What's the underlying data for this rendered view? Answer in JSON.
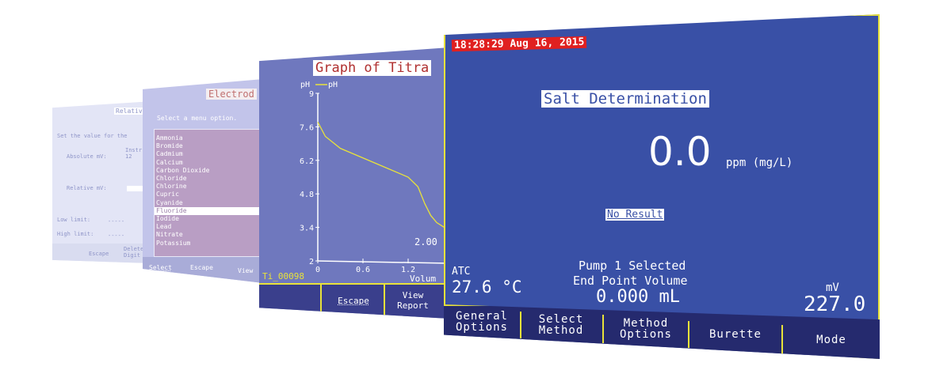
{
  "screen_settings": {
    "title": "Relative",
    "prompt": "Set the value for the",
    "absolute_label": "Absolute mV:",
    "absolute_value": "Instr 12",
    "relative_label": "Relative mV:",
    "low_limit_label": "Low limit:",
    "low_limit_value": "-----",
    "high_limit_label": "High limit:",
    "high_limit_value": "-----",
    "buttons": [
      "Escape",
      "Delete Digit"
    ]
  },
  "screen_electrode": {
    "title": "Electrod",
    "prompt": "Select a menu option.",
    "items": [
      "Ammonia",
      "Bromide",
      "Cadmium",
      "Calcium",
      "Carbon Dioxide",
      "Chloride",
      "Chlorine",
      "Cupric",
      "Cyanide",
      "Fluoride",
      "Iodide",
      "Lead",
      "Nitrate",
      "Potassium"
    ],
    "selected_item": "Fluoride",
    "buttons": [
      "Select",
      "Escape",
      "View"
    ]
  },
  "screen_graph": {
    "title": "Graph of Titra",
    "file_name": "Ti_00098",
    "annotation": "2.00",
    "buttons": [
      "",
      "Escape",
      "View Report"
    ],
    "chart_data": {
      "type": "line",
      "ylabel": "pH",
      "legend": "pH",
      "xlabel": "Volum",
      "x_ticks": [
        "0",
        "0.6",
        "1.2"
      ],
      "y_ticks": [
        "2",
        "3.4",
        "4.8",
        "6.2",
        "7.6",
        "9"
      ],
      "ylim": [
        2,
        9
      ],
      "series": [
        {
          "name": "pH",
          "color": "#e8e23a",
          "x": [
            0,
            0.1,
            0.3,
            0.6,
            0.9,
            1.2,
            1.33,
            1.42,
            1.5,
            1.58,
            1.68,
            1.75
          ],
          "y": [
            7.8,
            7.2,
            6.7,
            6.3,
            5.9,
            5.5,
            5.1,
            4.4,
            3.9,
            3.6,
            3.4,
            3.3
          ]
        }
      ]
    }
  },
  "screen_main": {
    "datetime": "18:28:29 Aug 16, 2015",
    "method_title": "Salt Determination",
    "reading_value": "0.0",
    "reading_unit": "ppm (mg/L)",
    "result_status": "No Result",
    "atc_label": "ATC",
    "temperature": "27.6 °C",
    "pump_status": "Pump 1 Selected",
    "endpoint_label": "End Point Volume",
    "endpoint_value": "0.000 mL",
    "mv_label": "mV",
    "mv_value": "227.0",
    "buttons": [
      "General Options",
      "Select Method",
      "Method Options",
      "Burette",
      "Mode"
    ]
  },
  "colors": {
    "screen_blue": "#3950a6",
    "border_yellow": "#e8e23a",
    "datetime_red": "#e02020",
    "footer_navy": "#252a6e"
  }
}
